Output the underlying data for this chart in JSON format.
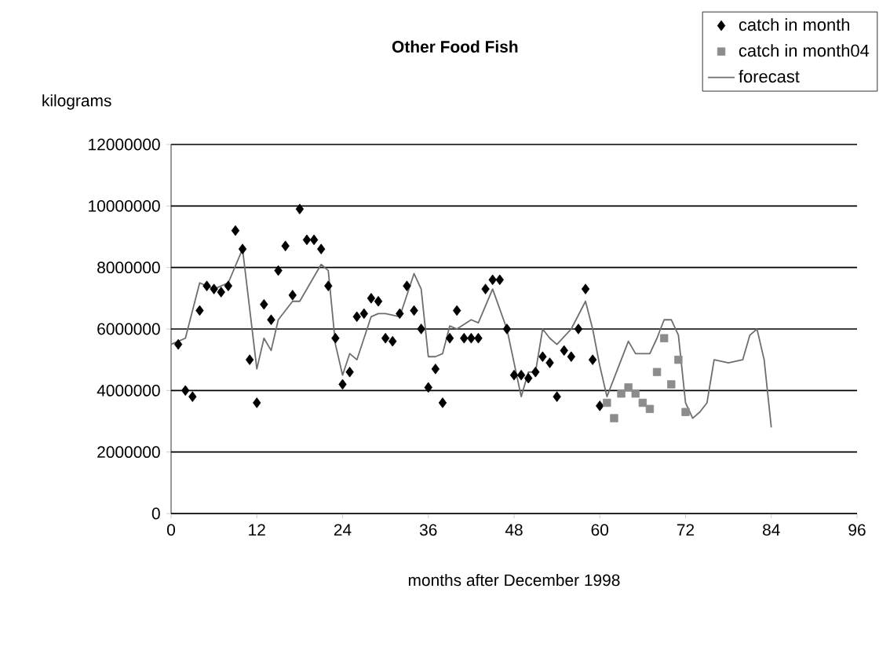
{
  "chart_data": {
    "type": "line",
    "title": "Other Food Fish",
    "xlabel": "months after December 1998",
    "ylabel": "kilograms",
    "xlim": [
      0,
      96
    ],
    "xticks": [
      0,
      12,
      24,
      36,
      48,
      60,
      72,
      84,
      96
    ],
    "ylim": [
      0,
      12000000
    ],
    "yticks": [
      0,
      2000000,
      4000000,
      6000000,
      8000000,
      10000000,
      12000000
    ],
    "grid": "y",
    "legend": "top right",
    "series": [
      {
        "name": "catch in month",
        "type": "scatter",
        "marker": "diamond",
        "color": "#000000",
        "x": [
          1,
          2,
          3,
          4,
          5,
          6,
          7,
          8,
          9,
          10,
          11,
          12,
          13,
          14,
          15,
          16,
          17,
          18,
          19,
          20,
          21,
          22,
          23,
          24,
          25,
          26,
          27,
          28,
          29,
          30,
          31,
          32,
          33,
          34,
          35,
          36,
          37,
          38,
          39,
          40,
          41,
          42,
          43,
          44,
          45,
          46,
          47,
          48,
          49,
          50,
          51,
          52,
          53,
          54,
          55,
          56,
          57,
          58,
          59,
          60
        ],
        "values": [
          5500000,
          4000000,
          3800000,
          6600000,
          7400000,
          7300000,
          7200000,
          7400000,
          9200000,
          8600000,
          5000000,
          3600000,
          6800000,
          6300000,
          7900000,
          8700000,
          7100000,
          9900000,
          8900000,
          8900000,
          8600000,
          7400000,
          5700000,
          4200000,
          4600000,
          6400000,
          6500000,
          7000000,
          6900000,
          5700000,
          5600000,
          6500000,
          7400000,
          6600000,
          6000000,
          4100000,
          4700000,
          3600000,
          5700000,
          6600000,
          5700000,
          5700000,
          5700000,
          7300000,
          7600000,
          7600000,
          6000000,
          4500000,
          4500000,
          4400000,
          4600000,
          5100000,
          4900000,
          3800000,
          5300000,
          5100000,
          6000000,
          7300000,
          5000000,
          3500000
        ]
      },
      {
        "name": "catch in month04",
        "type": "scatter",
        "marker": "square",
        "color": "#8c8c8c",
        "x": [
          61,
          62,
          63,
          64,
          65,
          66,
          67,
          68,
          69,
          70,
          71,
          72
        ],
        "values": [
          3600000,
          3100000,
          3900000,
          4100000,
          3900000,
          3600000,
          3400000,
          4600000,
          5700000,
          4200000,
          5000000,
          3300000
        ]
      },
      {
        "name": "forecast",
        "marker": "none",
        "line_style": "solid",
        "color": "#6e6e6e",
        "x": [
          0,
          2,
          4,
          6,
          8,
          10,
          12,
          13,
          14,
          15,
          17,
          18,
          21,
          22,
          23,
          24,
          25,
          26,
          28,
          29,
          30,
          32,
          34,
          35,
          36,
          37,
          38,
          39,
          40,
          42,
          43,
          45,
          47,
          49,
          50,
          51,
          52,
          53,
          54,
          56,
          58,
          59,
          60,
          61,
          64,
          65,
          67,
          68,
          69,
          70,
          71,
          72,
          73,
          74,
          75,
          76,
          78,
          80,
          81,
          82,
          83,
          84
        ],
        "values": [
          5500000,
          5700000,
          7500000,
          7300000,
          7500000,
          8600000,
          4700000,
          5700000,
          5300000,
          6300000,
          6900000,
          6900000,
          8100000,
          7900000,
          5500000,
          4500000,
          5200000,
          5000000,
          6400000,
          6500000,
          6500000,
          6400000,
          7800000,
          7300000,
          5100000,
          5100000,
          5200000,
          6100000,
          6000000,
          6300000,
          6200000,
          7300000,
          6000000,
          3800000,
          4600000,
          4600000,
          6000000,
          5700000,
          5500000,
          6000000,
          6900000,
          6000000,
          4800000,
          3800000,
          5600000,
          5200000,
          5200000,
          5700000,
          6300000,
          6300000,
          5800000,
          3600000,
          3100000,
          3300000,
          3600000,
          5000000,
          4900000,
          5000000,
          5800000,
          6000000,
          5000000,
          2800000
        ]
      }
    ]
  }
}
